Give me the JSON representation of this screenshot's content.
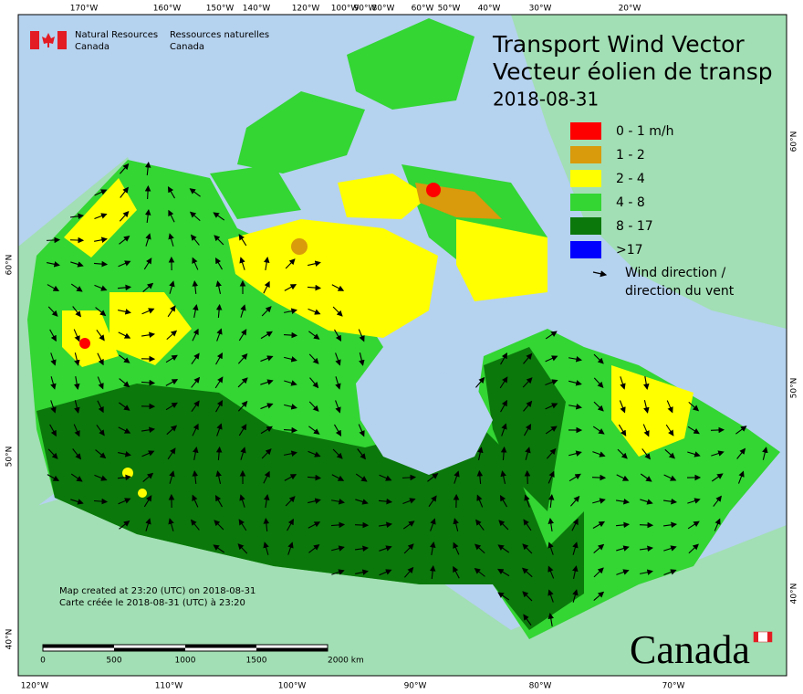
{
  "header": {
    "agency_en": [
      "Natural Resources",
      "Canada"
    ],
    "agency_fr": [
      "Ressources naturelles",
      "Canada"
    ]
  },
  "title": [
    "Transport Wind Vector",
    "Vecteur éolien de transp"
  ],
  "date": "2018-08-31",
  "legend": {
    "items": [
      {
        "label": "0 - 1 m/h",
        "color": "#ff0000"
      },
      {
        "label": "1 - 2",
        "color": "#d99a0b"
      },
      {
        "label": "2 - 4",
        "color": "#ffff00"
      },
      {
        "label": "4 - 8",
        "color": "#33d633"
      },
      {
        "label": "8 - 17",
        "color": "#0b780b"
      },
      {
        "label": ">17",
        "color": "#0000ff"
      }
    ],
    "arrow_label": [
      "Wind direction /",
      "direction du vent"
    ]
  },
  "graticule": {
    "top": [
      "170°W",
      "160°W",
      "150°W",
      "140°W",
      "120°W",
      "100°W",
      "90°W",
      "80°W",
      "60°W",
      "50°W",
      "40°W",
      "30°W",
      "20°W"
    ],
    "bottom": [
      "120°W",
      "110°W",
      "100°W",
      "90°W",
      "80°W",
      "70°W"
    ],
    "left": [
      "60°N",
      "50°N",
      "40°N"
    ],
    "right": [
      "60°N",
      "50°N",
      "40°N"
    ]
  },
  "footer": [
    "Map created at 23:20 (UTC) on 2018-08-31",
    "Carte créée le 2018-08-31 (UTC) à 23:20"
  ],
  "scale_bar": {
    "labels": [
      "0",
      "500",
      "1000",
      "1500",
      "2000 km"
    ]
  },
  "wordmark": "Canada"
}
